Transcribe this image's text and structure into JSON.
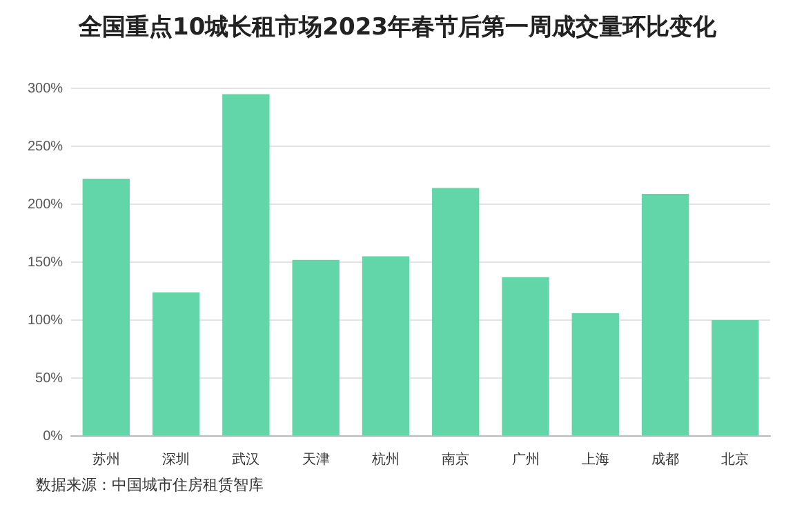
{
  "chart_data": {
    "type": "bar",
    "title": "全国重点10城长租市场2023年春节后第一周成交量环比变化",
    "categories": [
      "苏州",
      "深圳",
      "武汉",
      "天津",
      "杭州",
      "南京",
      "广州",
      "上海",
      "成都",
      "北京"
    ],
    "values": [
      222,
      124,
      295,
      152,
      155,
      214,
      137,
      106,
      209,
      100
    ],
    "color": "#62d6a8",
    "ylim": [
      0,
      300
    ],
    "yticks": [
      {
        "value": 0,
        "label": "0%"
      },
      {
        "value": 50,
        "label": "50%"
      },
      {
        "value": 100,
        "label": "100%"
      },
      {
        "value": 150,
        "label": "150%"
      },
      {
        "value": 200,
        "label": "200%"
      },
      {
        "value": 250,
        "label": "250%"
      },
      {
        "value": 300,
        "label": "300%"
      }
    ],
    "grid": "y",
    "annotations": [
      "数据来源：中国城市住房租赁智库"
    ]
  }
}
